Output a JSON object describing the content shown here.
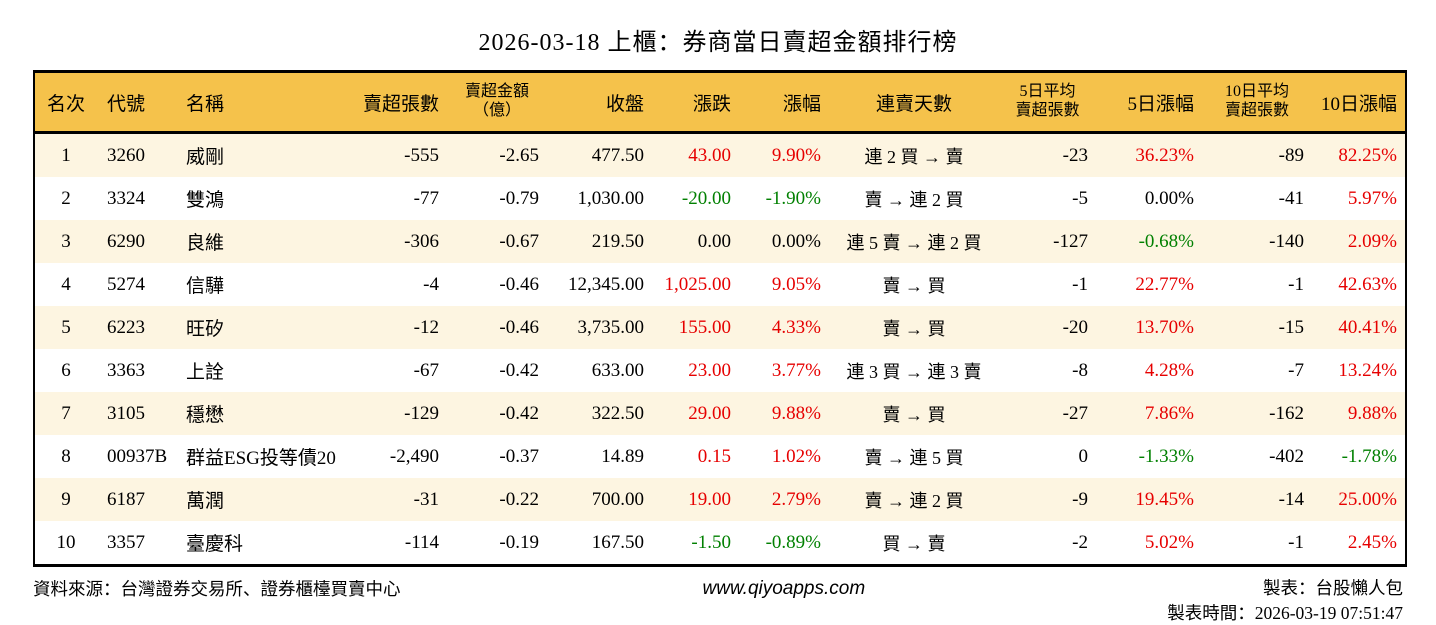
{
  "title": "2026-03-18 上櫃：券商當日賣超金額排行榜",
  "colors": {
    "red": "#e60000",
    "green": "#018001",
    "black": "#000000",
    "header_bg": "#f5c24b",
    "row_alt_bg": "#fdf5e1"
  },
  "table": {
    "columns": [
      {
        "key": "rank",
        "label": "名次"
      },
      {
        "key": "code",
        "label": "代號"
      },
      {
        "key": "name",
        "label": "名稱"
      },
      {
        "key": "net-sell-qty",
        "label": "賣超張數"
      },
      {
        "key": "net-sell-amt",
        "label": "賣超金額\n（億）"
      },
      {
        "key": "close",
        "label": "收盤"
      },
      {
        "key": "change",
        "label": "漲跌"
      },
      {
        "key": "change-pct",
        "label": "漲幅"
      },
      {
        "key": "streak",
        "label": "連賣天數"
      },
      {
        "key": "avg5-qty",
        "label": "5日平均\n賣超張數"
      },
      {
        "key": "pct5",
        "label": "5日漲幅"
      },
      {
        "key": "avg10-qty",
        "label": "10日平均\n賣超張數"
      },
      {
        "key": "pct10",
        "label": "10日漲幅"
      }
    ],
    "rows": [
      {
        "cells": [
          {
            "v": "1"
          },
          {
            "v": "3260"
          },
          {
            "v": "威剛"
          },
          {
            "v": "-555"
          },
          {
            "v": "-2.65"
          },
          {
            "v": "477.50"
          },
          {
            "v": "43.00",
            "c": "red"
          },
          {
            "v": "9.90%",
            "c": "red"
          },
          {
            "v": "連 2 買 → 賣"
          },
          {
            "v": "-23"
          },
          {
            "v": "36.23%",
            "c": "red"
          },
          {
            "v": "-89"
          },
          {
            "v": "82.25%",
            "c": "red"
          }
        ]
      },
      {
        "cells": [
          {
            "v": "2"
          },
          {
            "v": "3324"
          },
          {
            "v": "雙鴻"
          },
          {
            "v": "-77"
          },
          {
            "v": "-0.79"
          },
          {
            "v": "1,030.00"
          },
          {
            "v": "-20.00",
            "c": "green"
          },
          {
            "v": "-1.90%",
            "c": "green"
          },
          {
            "v": "賣 → 連 2 買"
          },
          {
            "v": "-5"
          },
          {
            "v": "0.00%"
          },
          {
            "v": "-41"
          },
          {
            "v": "5.97%",
            "c": "red"
          }
        ]
      },
      {
        "cells": [
          {
            "v": "3"
          },
          {
            "v": "6290"
          },
          {
            "v": "良維"
          },
          {
            "v": "-306"
          },
          {
            "v": "-0.67"
          },
          {
            "v": "219.50"
          },
          {
            "v": "0.00"
          },
          {
            "v": "0.00%"
          },
          {
            "v": "連 5 賣 → 連 2 買"
          },
          {
            "v": "-127"
          },
          {
            "v": "-0.68%",
            "c": "green"
          },
          {
            "v": "-140"
          },
          {
            "v": "2.09%",
            "c": "red"
          }
        ]
      },
      {
        "cells": [
          {
            "v": "4"
          },
          {
            "v": "5274"
          },
          {
            "v": "信驊"
          },
          {
            "v": "-4"
          },
          {
            "v": "-0.46"
          },
          {
            "v": "12,345.00"
          },
          {
            "v": "1,025.00",
            "c": "red"
          },
          {
            "v": "9.05%",
            "c": "red"
          },
          {
            "v": "賣 → 買"
          },
          {
            "v": "-1"
          },
          {
            "v": "22.77%",
            "c": "red"
          },
          {
            "v": "-1"
          },
          {
            "v": "42.63%",
            "c": "red"
          }
        ]
      },
      {
        "cells": [
          {
            "v": "5"
          },
          {
            "v": "6223"
          },
          {
            "v": "旺矽"
          },
          {
            "v": "-12"
          },
          {
            "v": "-0.46"
          },
          {
            "v": "3,735.00"
          },
          {
            "v": "155.00",
            "c": "red"
          },
          {
            "v": "4.33%",
            "c": "red"
          },
          {
            "v": "賣 → 買"
          },
          {
            "v": "-20"
          },
          {
            "v": "13.70%",
            "c": "red"
          },
          {
            "v": "-15"
          },
          {
            "v": "40.41%",
            "c": "red"
          }
        ]
      },
      {
        "cells": [
          {
            "v": "6"
          },
          {
            "v": "3363"
          },
          {
            "v": "上詮"
          },
          {
            "v": "-67"
          },
          {
            "v": "-0.42"
          },
          {
            "v": "633.00"
          },
          {
            "v": "23.00",
            "c": "red"
          },
          {
            "v": "3.77%",
            "c": "red"
          },
          {
            "v": "連 3 買 → 連 3 賣"
          },
          {
            "v": "-8"
          },
          {
            "v": "4.28%",
            "c": "red"
          },
          {
            "v": "-7"
          },
          {
            "v": "13.24%",
            "c": "red"
          }
        ]
      },
      {
        "cells": [
          {
            "v": "7"
          },
          {
            "v": "3105"
          },
          {
            "v": "穩懋"
          },
          {
            "v": "-129"
          },
          {
            "v": "-0.42"
          },
          {
            "v": "322.50"
          },
          {
            "v": "29.00",
            "c": "red"
          },
          {
            "v": "9.88%",
            "c": "red"
          },
          {
            "v": "賣 → 買"
          },
          {
            "v": "-27"
          },
          {
            "v": "7.86%",
            "c": "red"
          },
          {
            "v": "-162"
          },
          {
            "v": "9.88%",
            "c": "red"
          }
        ]
      },
      {
        "cells": [
          {
            "v": "8"
          },
          {
            "v": "00937B"
          },
          {
            "v": "群益ESG投等債20"
          },
          {
            "v": "-2,490"
          },
          {
            "v": "-0.37"
          },
          {
            "v": "14.89"
          },
          {
            "v": "0.15",
            "c": "red"
          },
          {
            "v": "1.02%",
            "c": "red"
          },
          {
            "v": "賣 → 連 5 買"
          },
          {
            "v": "0"
          },
          {
            "v": "-1.33%",
            "c": "green"
          },
          {
            "v": "-402"
          },
          {
            "v": "-1.78%",
            "c": "green"
          }
        ]
      },
      {
        "cells": [
          {
            "v": "9"
          },
          {
            "v": "6187"
          },
          {
            "v": "萬潤"
          },
          {
            "v": "-31"
          },
          {
            "v": "-0.22"
          },
          {
            "v": "700.00"
          },
          {
            "v": "19.00",
            "c": "red"
          },
          {
            "v": "2.79%",
            "c": "red"
          },
          {
            "v": "賣 → 連 2 買"
          },
          {
            "v": "-9"
          },
          {
            "v": "19.45%",
            "c": "red"
          },
          {
            "v": "-14"
          },
          {
            "v": "25.00%",
            "c": "red"
          }
        ]
      },
      {
        "cells": [
          {
            "v": "10"
          },
          {
            "v": "3357"
          },
          {
            "v": "臺慶科"
          },
          {
            "v": "-114"
          },
          {
            "v": "-0.19"
          },
          {
            "v": "167.50"
          },
          {
            "v": "-1.50",
            "c": "green"
          },
          {
            "v": "-0.89%",
            "c": "green"
          },
          {
            "v": "買 → 賣"
          },
          {
            "v": "-2"
          },
          {
            "v": "5.02%",
            "c": "red"
          },
          {
            "v": "-1"
          },
          {
            "v": "2.45%",
            "c": "red"
          }
        ]
      }
    ]
  },
  "footer": {
    "source": "資料來源：台灣證券交易所、證券櫃檯買賣中心",
    "site": "www.qiyoapps.com",
    "made_by": "製表：台股懶人包",
    "made_time": "製表時間：2026-03-19 07:51:47"
  }
}
